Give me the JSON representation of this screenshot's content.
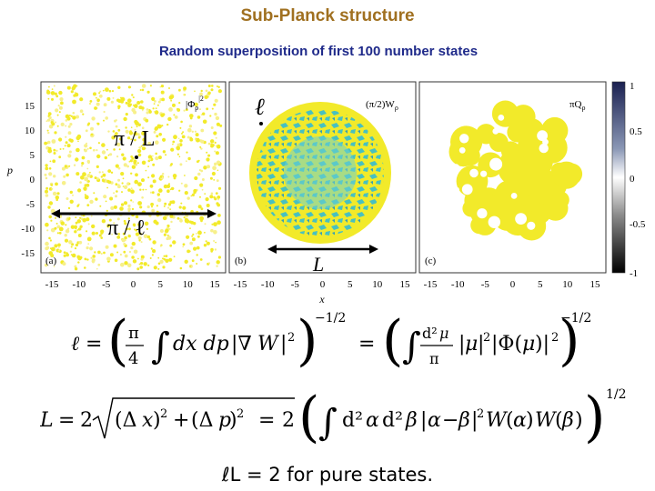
{
  "slide": {
    "title": "Sub-Planck structure",
    "subtitle": "Random superposition of first 100 number states"
  },
  "figure": {
    "p_ticks": [
      "15",
      "10",
      "5",
      "0",
      "-5",
      "-10",
      "-15"
    ],
    "x_ticks": [
      "-15",
      "-10",
      "-5",
      "0",
      "5",
      "10",
      "15"
    ],
    "x_axis_label": "x",
    "y_axis_label": "p",
    "colorbar_ticks": [
      "1",
      "0.5",
      "0",
      "-0.5",
      "-1"
    ],
    "panel_a": {
      "tag": "(a)",
      "quantity": "|Φ",
      "quantity_sub": "ρ",
      "quantity_sup": "|2"
    },
    "panel_b": {
      "tag": "(b)",
      "quantity": "(π/2)W",
      "quantity_sub": "ρ"
    },
    "panel_c": {
      "tag": "(c)",
      "quantity": "πQ",
      "quantity_sub": "ρ"
    },
    "annotations": {
      "pi_over_L": "π / L",
      "pi_over_ell": "π / ℓ",
      "ell": "ℓ",
      "L": "L"
    }
  },
  "equations": {
    "ell_def": "ℓ = ( π/4 ∫ dx dp |∇W|² )^(−1/2) = ( ∫ d²μ/π |μ|² |Φ(μ)|² )^(−1/2)",
    "L_def": "L = 2 √((Δx)² + (Δp)²) = 2 ( ∫ d²α d²β |α − β|² W(α) W(β) )^(1/2)",
    "product": "ℓL = 2 for pure states."
  },
  "colors": {
    "title": "#a07020",
    "subtitle": "#1f2a8a",
    "plot_yellow": "#f2ea2a",
    "plot_cyan": "#48c0c0",
    "colorbar_top": "#1a2050",
    "colorbar_bottom": "#000000"
  }
}
